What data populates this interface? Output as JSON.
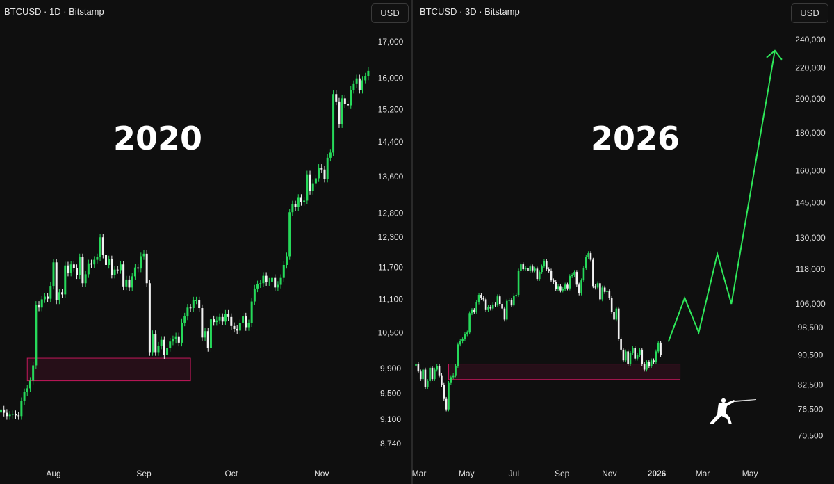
{
  "colors": {
    "background": "#0f0f0f",
    "up": "#26d95a",
    "down": "#f2f2f2",
    "zone_fill": "#2a0f1a",
    "zone_stroke": "#c2185b",
    "projection": "#2ee85a",
    "text": "#e0e0e0"
  },
  "chart_data": [
    {
      "type": "candlestick",
      "title": "BTCUSD · 1D · Bitstamp",
      "label": "2020",
      "currency_button": "USD",
      "y_scale": "log",
      "ylim": [
        8600,
        17300
      ],
      "y_ticks": [
        "17,000",
        "16,000",
        "15,200",
        "14,400",
        "13,600",
        "12,800",
        "12,300",
        "11,700",
        "11,100",
        "10,500",
        "9,900",
        "9,500",
        "9,100",
        "8,740"
      ],
      "x_ticks": [
        {
          "label": "Aug",
          "date": "2020-08-01"
        },
        {
          "label": "Sep",
          "date": "2020-09-01"
        },
        {
          "label": "Oct",
          "date": "2020-10-01"
        },
        {
          "label": "Nov",
          "date": "2020-11-01"
        }
      ],
      "first_candle_date": "2020-07-14",
      "interval_days": 1,
      "closes": [
        9250,
        9200,
        9150,
        9170,
        9180,
        9160,
        9150,
        9380,
        9520,
        9580,
        9700,
        9950,
        11000,
        10950,
        11100,
        11150,
        11110,
        11350,
        11800,
        11080,
        11230,
        11190,
        11740,
        11600,
        11760,
        11690,
        11550,
        11900,
        11400,
        11570,
        11780,
        11760,
        11850,
        11900,
        12300,
        11950,
        11750,
        11860,
        11560,
        11660,
        11650,
        11760,
        11340,
        11470,
        11320,
        11530,
        11700,
        11680,
        11920,
        11970,
        11400,
        10170,
        10480,
        10170,
        10280,
        10380,
        10120,
        10240,
        10350,
        10390,
        10440,
        10330,
        10680,
        10790,
        10950,
        10940,
        11080,
        11080,
        10940,
        10420,
        10530,
        10240,
        10740,
        10690,
        10720,
        10780,
        10700,
        10840,
        10780,
        10620,
        10570,
        10540,
        10670,
        10790,
        10600,
        10670,
        11060,
        11300,
        11380,
        11400,
        11540,
        11420,
        11430,
        11500,
        11320,
        11370,
        11500,
        11750,
        11920,
        12820,
        12990,
        12930,
        13130,
        13040,
        13070,
        13650,
        13280,
        13450,
        13560,
        13800,
        13760,
        13550,
        14030,
        14150,
        15590,
        15400,
        14830,
        15480,
        15330,
        15300,
        15700,
        15850,
        16000,
        15700,
        15950,
        16050,
        16200,
        15800,
        15900,
        16400,
        16300,
        15800,
        16100,
        16600
      ],
      "zone": {
        "from": "2020-07-23",
        "to": "2020-09-17",
        "high": 10070,
        "low": 9700
      }
    },
    {
      "type": "candlestick",
      "title": "BTCUSD · 3D · Bitstamp",
      "label": "2026",
      "currency_button": "USD",
      "y_scale": "log",
      "ylim": [
        67000,
        250000
      ],
      "y_ticks": [
        "240,000",
        "220,000",
        "200,000",
        "180,000",
        "160,000",
        "145,000",
        "130,000",
        "118,000",
        "106,000",
        "98,500",
        "90,500",
        "82,500",
        "76,500",
        "70,500"
      ],
      "x_ticks": [
        {
          "label": "Mar",
          "date": "2025-03-01"
        },
        {
          "label": "May",
          "date": "2025-05-01"
        },
        {
          "label": "Jul",
          "date": "2025-07-01"
        },
        {
          "label": "Sep",
          "date": "2025-09-01"
        },
        {
          "label": "Nov",
          "date": "2025-11-01"
        },
        {
          "label": "2026",
          "date": "2026-01-01"
        },
        {
          "label": "Mar",
          "date": "2026-03-01"
        },
        {
          "label": "May",
          "date": "2026-05-01"
        }
      ],
      "first_candle_date": "2025-02-25",
      "interval_days": 3,
      "closes": [
        88000,
        86000,
        84000,
        86500,
        82000,
        83500,
        87000,
        84000,
        86500,
        87500,
        85000,
        82500,
        79000,
        76500,
        83000,
        84500,
        85000,
        87500,
        93500,
        94500,
        95000,
        96500,
        97000,
        103000,
        104000,
        103500,
        106500,
        109000,
        108000,
        107500,
        104000,
        105000,
        104500,
        105800,
        105500,
        108500,
        106000,
        104500,
        101000,
        107000,
        107300,
        105500,
        108800,
        109000,
        117500,
        119800,
        118000,
        118500,
        117300,
        119000,
        117600,
        118200,
        114500,
        117000,
        119000,
        121000,
        118000,
        117500,
        114000,
        113500,
        111000,
        112000,
        110500,
        111000,
        112500,
        111200,
        115500,
        115800,
        117000,
        112500,
        109500,
        114000,
        118500,
        122500,
        124000,
        121500,
        112000,
        111500,
        113000,
        107500,
        111500,
        110000,
        110200,
        108000,
        103500,
        101000,
        104500,
        95000,
        92000,
        89000,
        91500,
        88000,
        91000,
        92500,
        89500,
        90500,
        92000,
        88000,
        86500,
        88500,
        87500,
        89000,
        88500,
        91500,
        94000,
        90500
      ],
      "zone": {
        "from": "2025-04-08",
        "to": "2026-01-31",
        "high": 88000,
        "low": 83900
      },
      "projection": [
        {
          "date": "2026-01-16",
          "value": 94300
        },
        {
          "date": "2026-02-06",
          "value": 108000
        },
        {
          "date": "2026-02-24",
          "value": 97000
        },
        {
          "date": "2026-03-20",
          "value": 123700
        },
        {
          "date": "2026-04-07",
          "value": 106000
        },
        {
          "date": "2026-06-02",
          "value": 232000
        }
      ]
    }
  ]
}
